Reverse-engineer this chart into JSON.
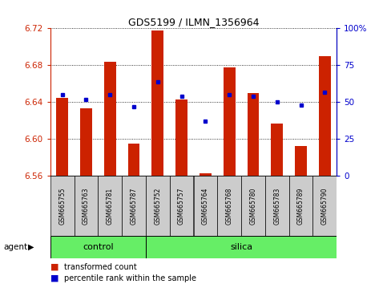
{
  "title": "GDS5199 / ILMN_1356964",
  "samples": [
    "GSM665755",
    "GSM665763",
    "GSM665781",
    "GSM665787",
    "GSM665752",
    "GSM665757",
    "GSM665764",
    "GSM665768",
    "GSM665780",
    "GSM665783",
    "GSM665789",
    "GSM665790"
  ],
  "transformed_counts": [
    6.645,
    6.633,
    6.684,
    6.595,
    6.718,
    6.643,
    6.563,
    6.678,
    6.65,
    6.617,
    6.593,
    6.69
  ],
  "percentile_ranks": [
    55,
    52,
    55,
    47,
    64,
    54,
    37,
    55,
    54,
    50,
    48,
    57
  ],
  "control_count": 4,
  "silica_count": 8,
  "ylim_left": [
    6.56,
    6.72
  ],
  "ylim_right": [
    0,
    100
  ],
  "yticks_left": [
    6.56,
    6.6,
    6.64,
    6.68,
    6.72
  ],
  "yticks_right": [
    0,
    25,
    50,
    75,
    100
  ],
  "bar_color": "#cc2200",
  "dot_color": "#0000cc",
  "green_bg": "#66ee66",
  "tick_bg": "#cccccc",
  "agent_label": "agent",
  "control_label": "control",
  "silica_label": "silica",
  "legend_bar": "transformed count",
  "legend_dot": "percentile rank within the sample"
}
